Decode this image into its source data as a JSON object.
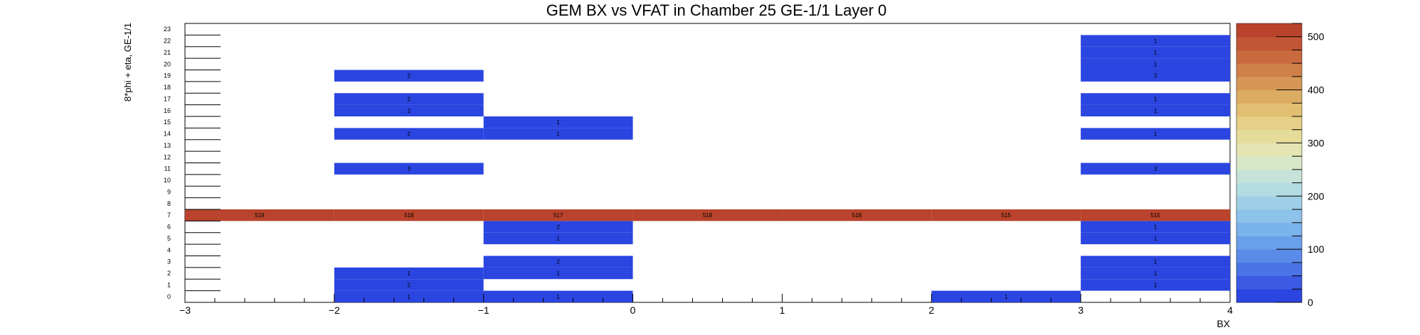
{
  "chart_data": {
    "type": "heatmap",
    "title": "GEM BX vs VFAT in Chamber 25 GE-1/1 Layer 0",
    "xlabel": "BX",
    "ylabel": "8*phi + eta, GE-1/1",
    "xlim": [
      -3,
      4
    ],
    "ylim": [
      0,
      24
    ],
    "x_ticks": [
      "−3",
      "−2",
      "−1",
      "0",
      "1",
      "2",
      "3",
      "4"
    ],
    "y_ticks": [
      "0",
      "1",
      "2",
      "3",
      "4",
      "5",
      "6",
      "7",
      "8",
      "9",
      "10",
      "11",
      "12",
      "13",
      "14",
      "15",
      "16",
      "17",
      "18",
      "19",
      "20",
      "21",
      "22",
      "23"
    ],
    "colorbar": {
      "min": 0,
      "max": 525,
      "ticks": [
        "0",
        "100",
        "200",
        "300",
        "400",
        "500"
      ]
    },
    "palette": [
      "#2b45e0",
      "#3a5ae4",
      "#4a73e6",
      "#5b8be8",
      "#6aa0ea",
      "#7bb3ec",
      "#8dc2ea",
      "#9fcfe6",
      "#b3dbe2",
      "#c6e3d9",
      "#d7e8c9",
      "#e3e5b2",
      "#e6dc9a",
      "#e6cf86",
      "#e2bf73",
      "#ddac63",
      "#d69655",
      "#cf8048",
      "#c86a3d",
      "#c15535",
      "#b9432c"
    ],
    "cells": [
      {
        "bx": -3,
        "vfat": 7,
        "count": 519
      },
      {
        "bx": -2,
        "vfat": 0,
        "count": 1
      },
      {
        "bx": -2,
        "vfat": 1,
        "count": 2
      },
      {
        "bx": -2,
        "vfat": 2,
        "count": 1
      },
      {
        "bx": -2,
        "vfat": 7,
        "count": 518
      },
      {
        "bx": -2,
        "vfat": 11,
        "count": 3
      },
      {
        "bx": -2,
        "vfat": 14,
        "count": 2
      },
      {
        "bx": -2,
        "vfat": 16,
        "count": 2
      },
      {
        "bx": -2,
        "vfat": 17,
        "count": 2
      },
      {
        "bx": -2,
        "vfat": 19,
        "count": 2
      },
      {
        "bx": -1,
        "vfat": 0,
        "count": 1
      },
      {
        "bx": -1,
        "vfat": 2,
        "count": 1
      },
      {
        "bx": -1,
        "vfat": 3,
        "count": 2
      },
      {
        "bx": -1,
        "vfat": 5,
        "count": 1
      },
      {
        "bx": -1,
        "vfat": 6,
        "count": 2
      },
      {
        "bx": -1,
        "vfat": 7,
        "count": 517
      },
      {
        "bx": -1,
        "vfat": 14,
        "count": 1
      },
      {
        "bx": -1,
        "vfat": 15,
        "count": 1
      },
      {
        "bx": 0,
        "vfat": 7,
        "count": 518
      },
      {
        "bx": 1,
        "vfat": 7,
        "count": 518
      },
      {
        "bx": 2,
        "vfat": 0,
        "count": 1
      },
      {
        "bx": 2,
        "vfat": 7,
        "count": 515
      },
      {
        "bx": 3,
        "vfat": 1,
        "count": 1
      },
      {
        "bx": 3,
        "vfat": 2,
        "count": 1
      },
      {
        "bx": 3,
        "vfat": 3,
        "count": 1
      },
      {
        "bx": 3,
        "vfat": 5,
        "count": 1
      },
      {
        "bx": 3,
        "vfat": 6,
        "count": 1
      },
      {
        "bx": 3,
        "vfat": 7,
        "count": 515
      },
      {
        "bx": 3,
        "vfat": 11,
        "count": 3
      },
      {
        "bx": 3,
        "vfat": 14,
        "count": 1
      },
      {
        "bx": 3,
        "vfat": 16,
        "count": 1
      },
      {
        "bx": 3,
        "vfat": 17,
        "count": 1
      },
      {
        "bx": 3,
        "vfat": 19,
        "count": 3
      },
      {
        "bx": 3,
        "vfat": 20,
        "count": 1
      },
      {
        "bx": 3,
        "vfat": 21,
        "count": 1
      },
      {
        "bx": 3,
        "vfat": 22,
        "count": 1
      }
    ]
  }
}
